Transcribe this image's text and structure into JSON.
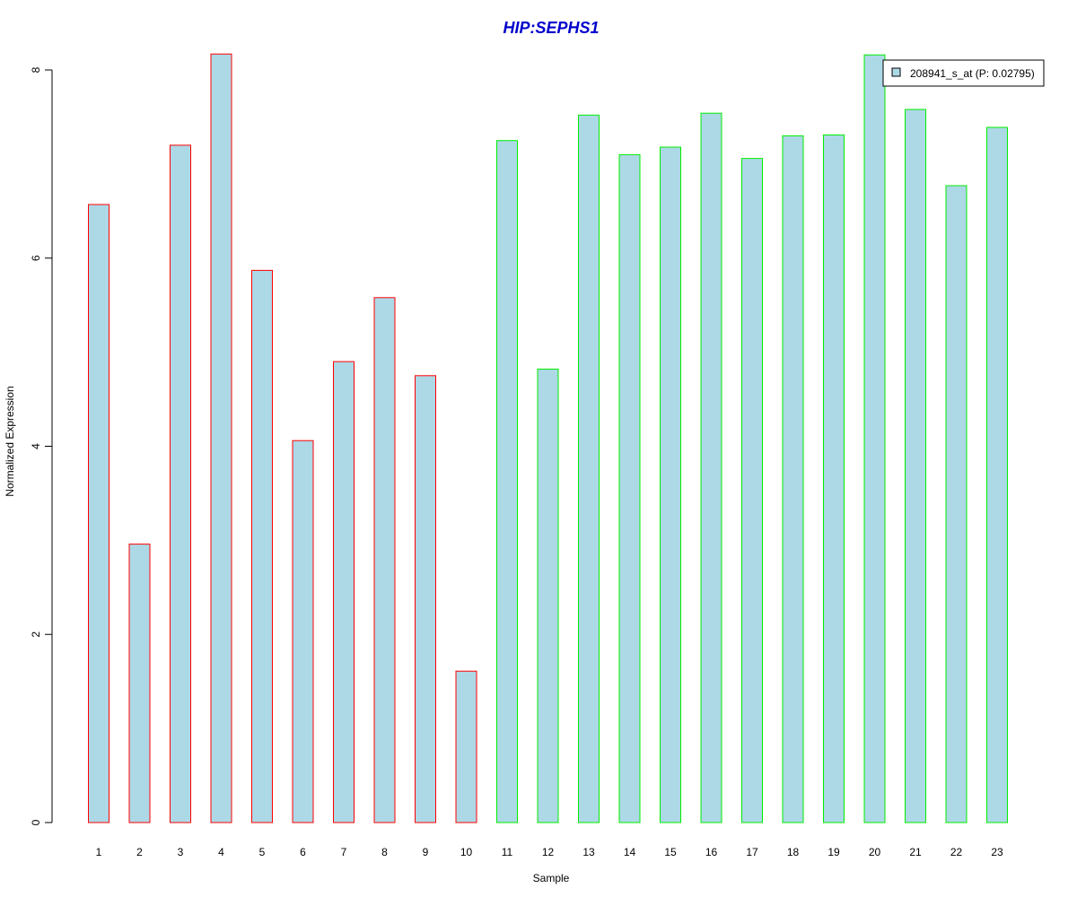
{
  "chart_data": {
    "type": "bar",
    "title": "HIP:SEPHS1",
    "xlabel": "Sample",
    "ylabel": "Normalized Expression",
    "categories": [
      "1",
      "2",
      "3",
      "4",
      "5",
      "6",
      "7",
      "8",
      "9",
      "10",
      "11",
      "12",
      "13",
      "14",
      "15",
      "16",
      "17",
      "18",
      "19",
      "20",
      "21",
      "22",
      "23"
    ],
    "series": [
      {
        "name": "208941_s_at (P: 0.02795)",
        "values": [
          6.57,
          2.96,
          7.2,
          8.17,
          5.87,
          4.06,
          4.9,
          5.58,
          4.75,
          1.61,
          7.25,
          4.82,
          7.52,
          7.1,
          7.18,
          7.54,
          7.06,
          7.3,
          7.31,
          8.16,
          7.58,
          6.77,
          7.39
        ]
      }
    ],
    "group_colors": [
      "#ff0000",
      "#ff0000",
      "#ff0000",
      "#ff0000",
      "#ff0000",
      "#ff0000",
      "#ff0000",
      "#ff0000",
      "#ff0000",
      "#ff0000",
      "#00ee00",
      "#00ee00",
      "#00ee00",
      "#00ee00",
      "#00ee00",
      "#00ee00",
      "#00ee00",
      "#00ee00",
      "#00ee00",
      "#00ee00",
      "#00ee00",
      "#00ee00",
      "#00ee00"
    ],
    "bar_fill": "#add8e6",
    "title_color": "#0000cc",
    "yticks": [
      0,
      2,
      4,
      6,
      8
    ],
    "ylim": [
      0,
      8.2
    ],
    "grid": false,
    "legend_position": "top-right"
  }
}
